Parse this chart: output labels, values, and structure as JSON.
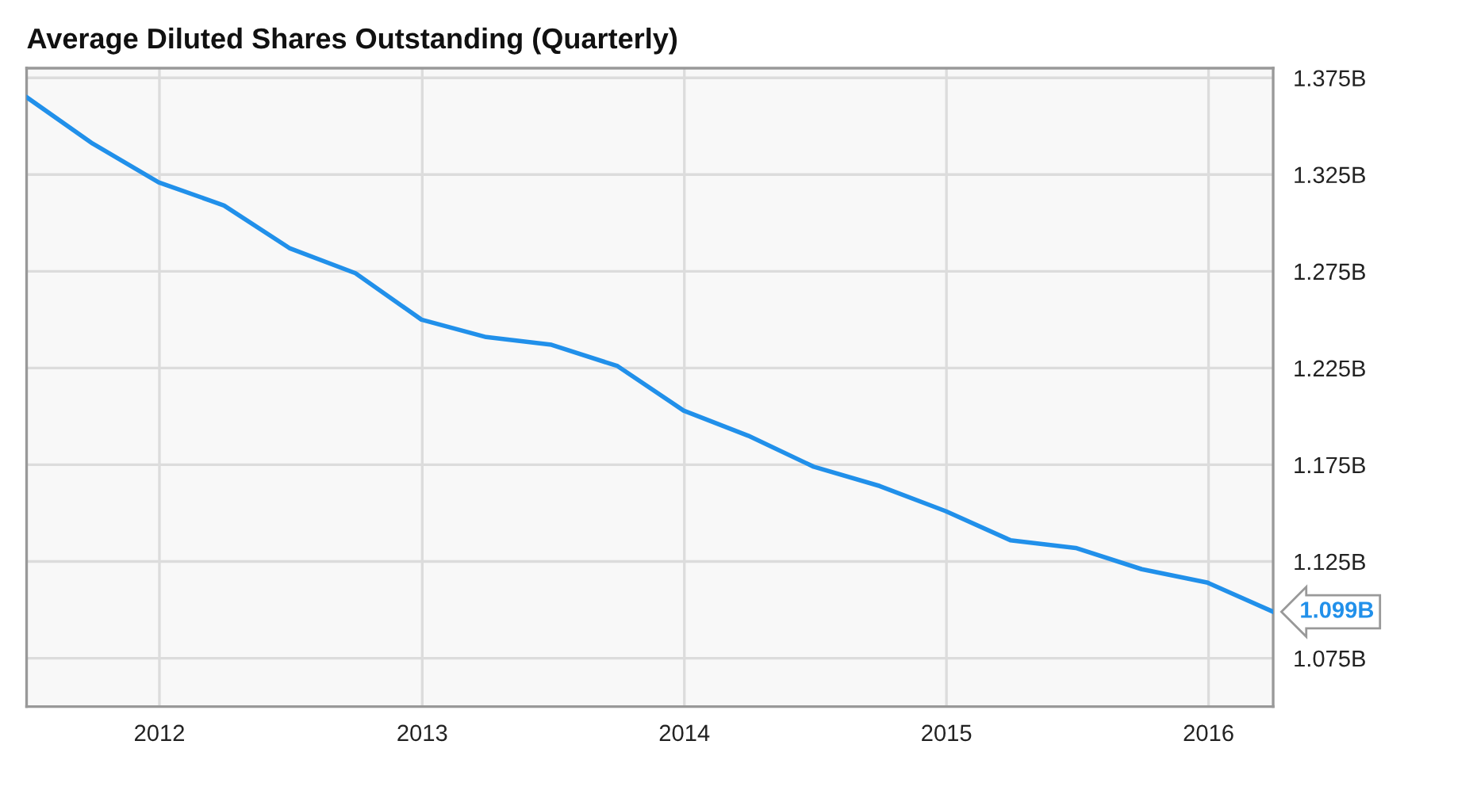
{
  "chart_data": {
    "type": "line",
    "title": "Average Diluted Shares Outstanding (Quarterly)",
    "x": [
      "2011-06-30",
      "2011-09-30",
      "2011-12-31",
      "2012-03-31",
      "2012-06-30",
      "2012-09-30",
      "2012-12-31",
      "2013-03-31",
      "2013-06-30",
      "2013-09-30",
      "2013-12-31",
      "2014-03-31",
      "2014-06-30",
      "2014-09-30",
      "2014-12-31",
      "2015-03-31",
      "2015-06-30",
      "2015-09-30",
      "2015-12-31",
      "2016-03-31"
    ],
    "series": [
      {
        "color": "#2190ea",
        "values": [
          1.365,
          1.341,
          1.321,
          1.309,
          1.287,
          1.274,
          1.25,
          1.241,
          1.237,
          1.226,
          1.203,
          1.19,
          1.174,
          1.164,
          1.151,
          1.136,
          1.132,
          1.121,
          1.114,
          1.099
        ],
        "value_labels": [
          null,
          null,
          null,
          null,
          null,
          null,
          null,
          null,
          null,
          null,
          null,
          null,
          null,
          null,
          null,
          null,
          null,
          null,
          null,
          "1.099B"
        ]
      }
    ],
    "xlim": [
      "2011-06-30",
      "2016-03-31"
    ],
    "xticks": [
      {
        "value": "2012-01-01",
        "label": "2012"
      },
      {
        "value": "2013-01-01",
        "label": "2013"
      },
      {
        "value": "2014-01-01",
        "label": "2014"
      },
      {
        "value": "2015-01-01",
        "label": "2015"
      },
      {
        "value": "2016-01-01",
        "label": "2016"
      }
    ],
    "ylim": [
      1.05,
      1.38
    ],
    "yticks": [
      {
        "value": 1.075,
        "label": "1.075B"
      },
      {
        "value": 1.125,
        "label": "1.125B"
      },
      {
        "value": 1.175,
        "label": "1.175B"
      },
      {
        "value": 1.225,
        "label": "1.225B"
      },
      {
        "value": 1.275,
        "label": "1.275B"
      },
      {
        "value": 1.325,
        "label": "1.325B"
      },
      {
        "value": 1.375,
        "label": "1.375B"
      }
    ],
    "grid": true
  }
}
